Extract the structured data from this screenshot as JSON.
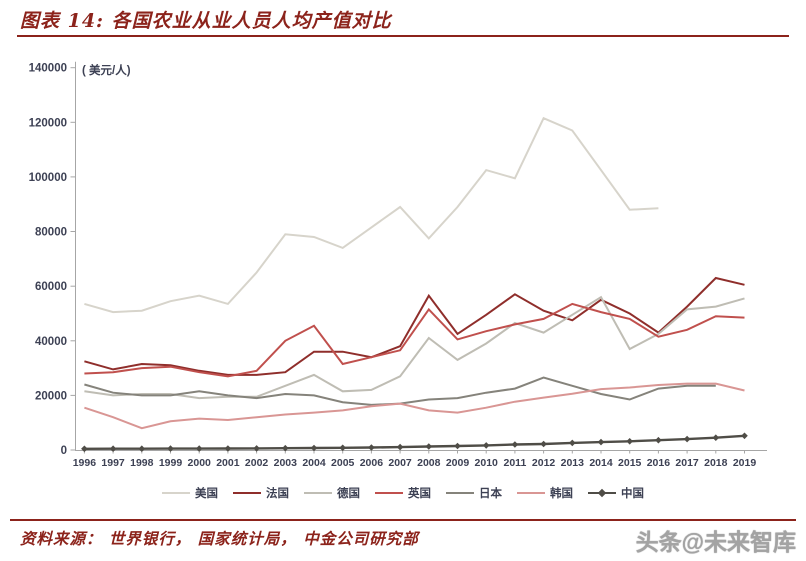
{
  "header": {
    "title": "图表 14:  各国农业从业人员人均产值对比"
  },
  "chart_data": {
    "type": "line",
    "title": "各国农业从业人员人均产值对比",
    "unit_label": "( 美元/人)",
    "xlabel": "",
    "ylabel": "美元/人",
    "ylim": [
      0,
      140000
    ],
    "ytick_step": 20000,
    "grid": false,
    "legend_position": "bottom",
    "x": [
      1996,
      1997,
      1998,
      1999,
      2000,
      2001,
      2002,
      2003,
      2004,
      2005,
      2006,
      2007,
      2008,
      2009,
      2010,
      2011,
      2012,
      2013,
      2014,
      2015,
      2016,
      2017,
      2018,
      2019
    ],
    "series": [
      {
        "name": "美国",
        "color": "#d7d4cb",
        "values": [
          53500,
          50500,
          51000,
          54500,
          56500,
          53500,
          65000,
          79000,
          78000,
          74000,
          81500,
          89000,
          77500,
          89000,
          102500,
          99500,
          121500,
          117000,
          102500,
          88000,
          88500,
          null,
          null,
          null
        ]
      },
      {
        "name": "法国",
        "color": "#8f2e2b",
        "values": [
          32500,
          29500,
          31500,
          31000,
          29000,
          27500,
          27500,
          28500,
          36000,
          36000,
          34000,
          38000,
          56500,
          42500,
          49500,
          57000,
          51000,
          47500,
          55000,
          50000,
          43000,
          52500,
          63000,
          60500
        ]
      },
      {
        "name": "德国",
        "color": "#bfbdb4",
        "values": [
          21500,
          20000,
          20500,
          20500,
          19000,
          19500,
          19500,
          23500,
          27500,
          21500,
          22000,
          27000,
          41000,
          33000,
          39000,
          46500,
          43000,
          49500,
          56000,
          37000,
          42500,
          51500,
          52500,
          55500
        ]
      },
      {
        "name": "英国",
        "color": "#c0504d",
        "values": [
          28000,
          28500,
          30000,
          30500,
          28500,
          27000,
          29000,
          40000,
          45500,
          31500,
          34000,
          36500,
          51500,
          40500,
          43500,
          46000,
          48000,
          53500,
          50500,
          48000,
          41500,
          44000,
          49000,
          48500
        ]
      },
      {
        "name": "日本",
        "color": "#85837b",
        "values": [
          24000,
          21000,
          20000,
          20000,
          21500,
          20000,
          19000,
          20500,
          20000,
          17500,
          16500,
          17000,
          18500,
          19000,
          21000,
          22500,
          26500,
          23500,
          20500,
          18500,
          22500,
          23500,
          23500,
          null
        ]
      },
      {
        "name": "韩国",
        "color": "#d99694",
        "values": [
          15500,
          12000,
          8000,
          10500,
          11500,
          11000,
          12000,
          13000,
          13700,
          14500,
          16000,
          17000,
          14500,
          13700,
          15500,
          17700,
          19200,
          20600,
          22300,
          22900,
          23800,
          24300,
          24300,
          21800
        ]
      },
      {
        "name": "中国",
        "color": "#4f4d47",
        "marker": "diamond",
        "values": [
          450,
          470,
          480,
          500,
          530,
          560,
          600,
          650,
          730,
          800,
          900,
          1050,
          1300,
          1450,
          1700,
          2000,
          2200,
          2600,
          2900,
          3200,
          3600,
          4000,
          4500,
          5200
        ]
      }
    ]
  },
  "footer": {
    "source_text": "资料来源：  世界银行，  国家统计局，    中金公司研究部",
    "watermark": "头条@未来智库"
  }
}
